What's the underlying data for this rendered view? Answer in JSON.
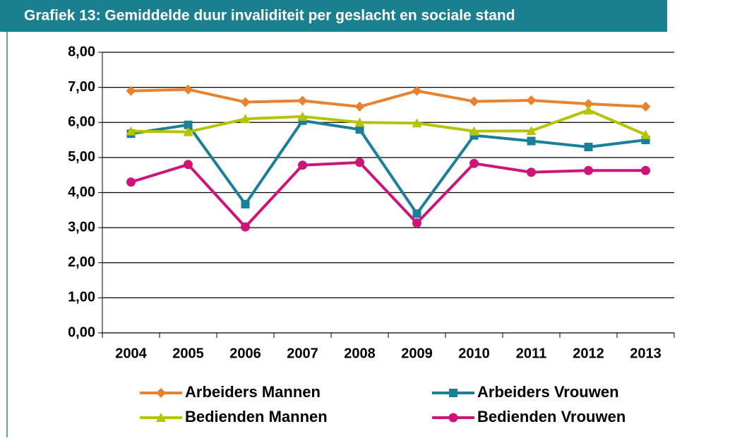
{
  "chart_data": {
    "type": "line",
    "title": "Grafiek 13: Gemiddelde duur invaliditeit per geslacht en sociale stand",
    "categories": [
      "2004",
      "2005",
      "2006",
      "2007",
      "2008",
      "2009",
      "2010",
      "2011",
      "2012",
      "2013"
    ],
    "series": [
      {
        "name": "Arbeiders Mannen",
        "color": "#e8822e",
        "marker": "diamond",
        "values": [
          6.9,
          6.94,
          6.58,
          6.62,
          6.45,
          6.9,
          6.6,
          6.63,
          6.53,
          6.45
        ]
      },
      {
        "name": "Arbeiders Vrouwen",
        "color": "#1b7f98",
        "marker": "square",
        "values": [
          5.68,
          5.93,
          3.67,
          6.05,
          5.8,
          3.4,
          5.63,
          5.47,
          5.3,
          5.5
        ]
      },
      {
        "name": "Bedienden Mannen",
        "color": "#b5c400",
        "marker": "triangle",
        "values": [
          5.75,
          5.73,
          6.1,
          6.17,
          6.0,
          5.98,
          5.75,
          5.76,
          6.35,
          5.65
        ]
      },
      {
        "name": "Bedienden Vrouwen",
        "color": "#cc1577",
        "marker": "circle",
        "values": [
          4.3,
          4.8,
          3.02,
          4.78,
          4.86,
          3.13,
          4.83,
          4.58,
          4.63,
          4.63
        ]
      }
    ],
    "ylim": [
      0,
      8
    ],
    "yticks": [
      {
        "value": 0,
        "label": "0,00"
      },
      {
        "value": 1,
        "label": "1,00"
      },
      {
        "value": 2,
        "label": "2,00"
      },
      {
        "value": 3,
        "label": "3,00"
      },
      {
        "value": 4,
        "label": "4,00"
      },
      {
        "value": 5,
        "label": "5,00"
      },
      {
        "value": 6,
        "label": "6,00"
      },
      {
        "value": 7,
        "label": "7,00"
      },
      {
        "value": 8,
        "label": "8,00"
      }
    ],
    "grid": true,
    "legend": "bottom"
  }
}
